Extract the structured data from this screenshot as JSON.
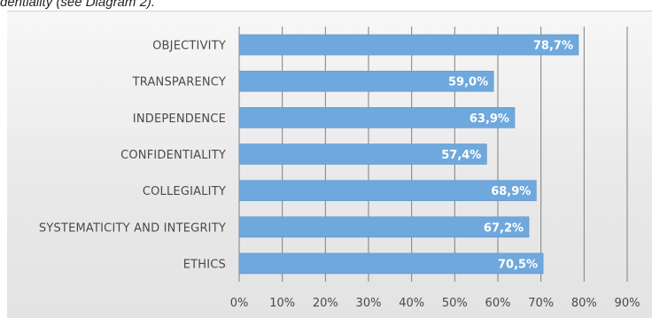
{
  "caption": "dentiality (see Diagram 2).",
  "colors": {
    "bar": "#6fa8dc",
    "bar_edge": "#5b94c8",
    "grid": "#7f7f7f",
    "background": "#ececec"
  },
  "chart_data": {
    "type": "bar",
    "orientation": "horizontal",
    "title": "",
    "xlabel": "",
    "ylabel": "",
    "categories": [
      "OBJECTIVITY",
      "TRANSPARENCY",
      "INDEPENDENCE",
      "CONFIDENTIALITY",
      "COLLEGIALITY",
      "SYSTEMATICITY AND INTEGRITY",
      "ETHICS"
    ],
    "values": [
      78.7,
      59.0,
      63.9,
      57.4,
      68.9,
      67.2,
      70.5
    ],
    "data_labels": [
      "78,7%",
      "59,0%",
      "63,9%",
      "57,4%",
      "68,9%",
      "67,2%",
      "70,5%"
    ],
    "xlim": [
      0,
      90
    ],
    "ticks": [
      0,
      10,
      20,
      30,
      40,
      50,
      60,
      70,
      80,
      90
    ],
    "tick_labels": [
      "0%",
      "10%",
      "20%",
      "30%",
      "40%",
      "50%",
      "60%",
      "70%",
      "80%",
      "90%"
    ],
    "grid": "vertical",
    "legend": "none"
  }
}
